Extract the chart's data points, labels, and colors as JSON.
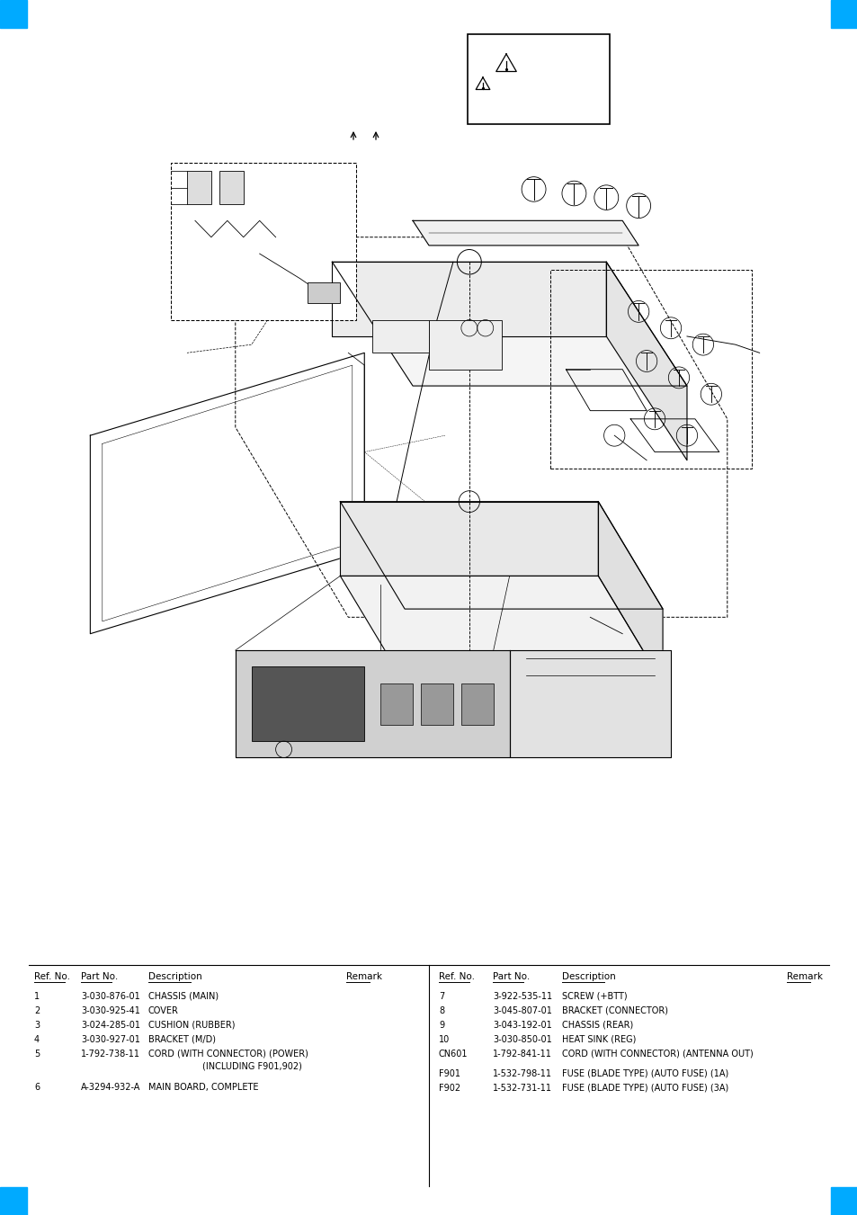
{
  "background_color": "#ffffff",
  "border_color": "#00aaff",
  "parts_left": [
    {
      "ref": "1",
      "part": "3-030-876-01",
      "desc": "CHASSIS (MAIN)",
      "indent": false
    },
    {
      "ref": "2",
      "part": "3-030-925-41",
      "desc": "COVER",
      "indent": false
    },
    {
      "ref": "3",
      "part": "3-024-285-01",
      "desc": "CUSHION (RUBBER)",
      "indent": false
    },
    {
      "ref": "4",
      "part": "3-030-927-01",
      "desc": "BRACKET (M/D)",
      "indent": false
    },
    {
      "ref": "5",
      "part": "1-792-738-11",
      "desc": "CORD (WITH CONNECTOR) (POWER)",
      "indent": false
    },
    {
      "ref": "",
      "part": "",
      "desc": "(INCLUDING F901,902)",
      "indent": true
    },
    {
      "ref": "6",
      "part": "A-3294-932-A",
      "desc": "MAIN BOARD, COMPLETE",
      "indent": false
    }
  ],
  "parts_right": [
    {
      "ref": "7",
      "part": "3-922-535-11",
      "desc": "SCREW (+BTT)"
    },
    {
      "ref": "8",
      "part": "3-045-807-01",
      "desc": "BRACKET (CONNECTOR)"
    },
    {
      "ref": "9",
      "part": "3-043-192-01",
      "desc": "CHASSIS (REAR)"
    },
    {
      "ref": "10",
      "part": "3-030-850-01",
      "desc": "HEAT SINK (REG)"
    },
    {
      "ref": "CN601",
      "part": "1-792-841-11",
      "desc": "CORD (WITH CONNECTOR) (ANTENNA OUT)"
    },
    {
      "ref": "F901",
      "part": "1-532-798-11",
      "desc": "FUSE (BLADE TYPE) (AUTO FUSE) (1A)"
    },
    {
      "ref": "F902",
      "part": "1-532-731-11",
      "desc": "FUSE (BLADE TYPE) (AUTO FUSE) (3A)"
    }
  ],
  "col_headers": [
    "Ref. No.",
    "Part No.",
    "Description",
    "Remark"
  ],
  "tab_color": "#00aaff",
  "header_fs": 7.5,
  "row_fs": 7.0
}
